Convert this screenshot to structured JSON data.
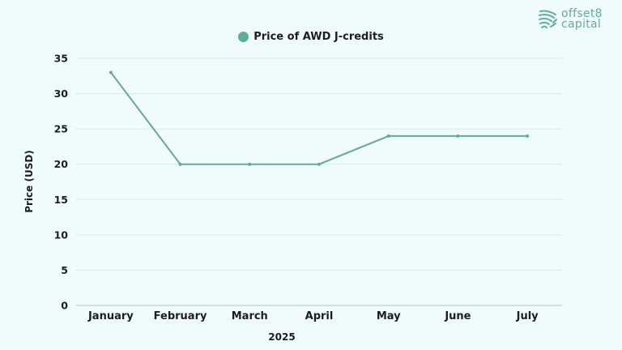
{
  "branding": {
    "logo_line1": "offset8",
    "logo_line2": "capital",
    "logo_icon": "fingerprint-icon",
    "logo_color": "#5fae9c"
  },
  "legend": {
    "label": "Price of AWD J-credits",
    "color": "#5fae9c"
  },
  "colors": {
    "background": "#effcfb",
    "line": "#68a996",
    "gridline": "#d6ebe6",
    "axis": "#bcd2cc",
    "text": "#1d1d1d"
  },
  "chart_data": {
    "type": "line",
    "title": "",
    "categories": [
      "January",
      "February",
      "March",
      "April",
      "May",
      "June",
      "July"
    ],
    "series": [
      {
        "name": "Price of AWD J-credits",
        "values": [
          33,
          20,
          20,
          20,
          24,
          24,
          24
        ]
      }
    ],
    "xlabel": "2025",
    "ylabel": "Price (USD)",
    "ylim": [
      0,
      35
    ],
    "yticks": [
      0,
      5,
      10,
      15,
      20,
      25,
      30,
      35
    ],
    "grid": true,
    "legend_position": "top-center"
  }
}
